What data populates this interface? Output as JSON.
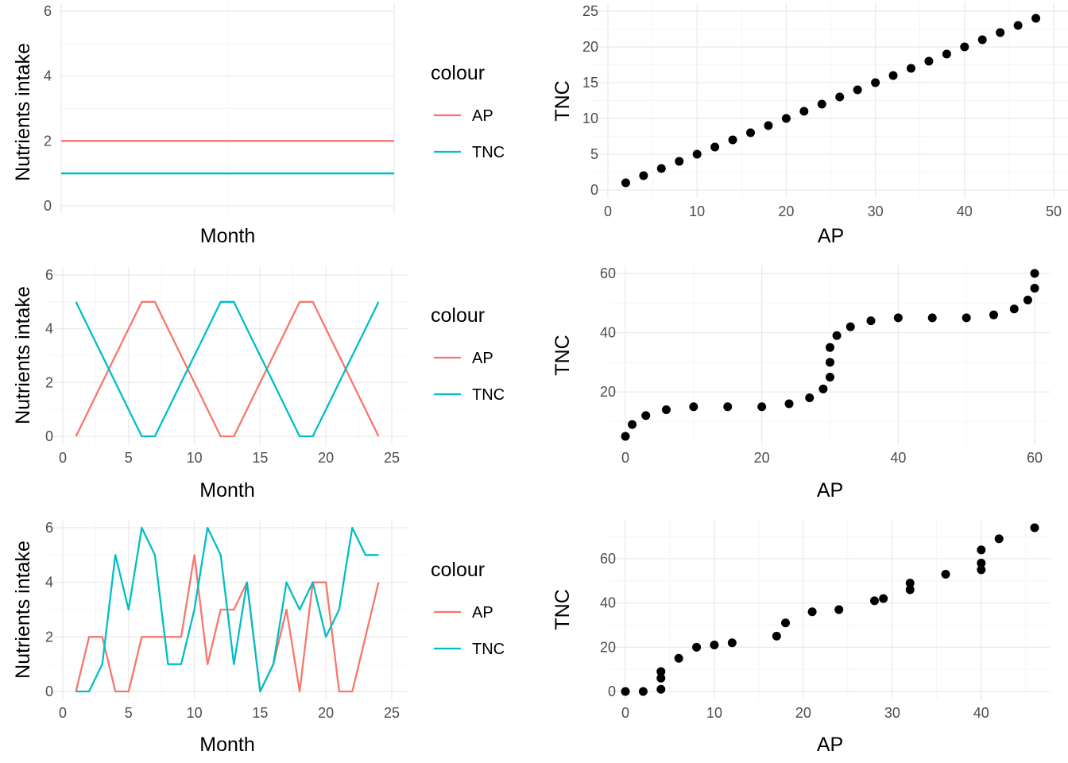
{
  "colors": {
    "AP": "#F8766D",
    "TNC": "#00BFC4",
    "point": "#000000"
  },
  "chart_data": [
    {
      "type": "line",
      "xlabel": "Month",
      "ylabel": "Nutrients intake",
      "xlim": [
        1,
        24
      ],
      "ylim": [
        0,
        6
      ],
      "xticks": [],
      "yticks": [
        0,
        2,
        4,
        6
      ],
      "legend": {
        "title": "colour",
        "entries": [
          "AP",
          "TNC"
        ],
        "placement": "right"
      },
      "x": [
        1,
        2,
        3,
        4,
        5,
        6,
        7,
        8,
        9,
        10,
        11,
        12,
        13,
        14,
        15,
        16,
        17,
        18,
        19,
        20,
        21,
        22,
        23,
        24
      ],
      "series": [
        {
          "name": "AP",
          "values": [
            2,
            2,
            2,
            2,
            2,
            2,
            2,
            2,
            2,
            2,
            2,
            2,
            2,
            2,
            2,
            2,
            2,
            2,
            2,
            2,
            2,
            2,
            2,
            2
          ]
        },
        {
          "name": "TNC",
          "values": [
            1,
            1,
            1,
            1,
            1,
            1,
            1,
            1,
            1,
            1,
            1,
            1,
            1,
            1,
            1,
            1,
            1,
            1,
            1,
            1,
            1,
            1,
            1,
            1
          ]
        }
      ]
    },
    {
      "type": "scatter",
      "xlabel": "AP",
      "ylabel": "TNC",
      "xlim": [
        0,
        50
      ],
      "ylim": [
        0,
        25
      ],
      "xticks": [
        0,
        10,
        20,
        30,
        40,
        50
      ],
      "yticks": [
        0,
        5,
        10,
        15,
        20,
        25
      ],
      "points": [
        [
          2,
          1
        ],
        [
          4,
          2
        ],
        [
          6,
          3
        ],
        [
          8,
          4
        ],
        [
          10,
          5
        ],
        [
          12,
          6
        ],
        [
          14,
          7
        ],
        [
          16,
          8
        ],
        [
          18,
          9
        ],
        [
          20,
          10
        ],
        [
          22,
          11
        ],
        [
          24,
          12
        ],
        [
          26,
          13
        ],
        [
          28,
          14
        ],
        [
          30,
          15
        ],
        [
          32,
          16
        ],
        [
          34,
          17
        ],
        [
          36,
          18
        ],
        [
          38,
          19
        ],
        [
          40,
          20
        ],
        [
          42,
          21
        ],
        [
          44,
          22
        ],
        [
          46,
          23
        ],
        [
          48,
          24
        ]
      ]
    },
    {
      "type": "line",
      "xlabel": "Month",
      "ylabel": "Nutrients intake",
      "xlim": [
        0,
        25
      ],
      "ylim": [
        0,
        6
      ],
      "xticks": [
        0,
        5,
        10,
        15,
        20,
        25
      ],
      "yticks": [
        0,
        2,
        4,
        6
      ],
      "legend": {
        "title": "colour",
        "entries": [
          "AP",
          "TNC"
        ],
        "placement": "right"
      },
      "x": [
        1,
        2,
        3,
        4,
        5,
        6,
        7,
        8,
        9,
        10,
        11,
        12,
        13,
        14,
        15,
        16,
        17,
        18,
        19,
        20,
        21,
        22,
        23,
        24
      ],
      "series": [
        {
          "name": "AP",
          "values": [
            0,
            1,
            2,
            3,
            4,
            5,
            5,
            4,
            3,
            2,
            1,
            0,
            0,
            1,
            2,
            3,
            4,
            5,
            5,
            4,
            3,
            2,
            1,
            0
          ]
        },
        {
          "name": "TNC",
          "values": [
            5,
            4,
            3,
            2,
            1,
            0,
            0,
            1,
            2,
            3,
            4,
            5,
            5,
            4,
            3,
            2,
            1,
            0,
            0,
            1,
            2,
            3,
            4,
            5
          ]
        }
      ]
    },
    {
      "type": "scatter",
      "xlabel": "AP",
      "ylabel": "TNC",
      "xlim": [
        0,
        60
      ],
      "ylim": [
        5,
        60
      ],
      "xticks": [
        0,
        20,
        40,
        60
      ],
      "yticks": [
        20,
        40,
        60
      ],
      "points": [
        [
          0,
          5
        ],
        [
          1,
          9
        ],
        [
          3,
          12
        ],
        [
          6,
          14
        ],
        [
          10,
          15
        ],
        [
          15,
          15
        ],
        [
          20,
          15
        ],
        [
          24,
          16
        ],
        [
          27,
          18
        ],
        [
          29,
          21
        ],
        [
          30,
          25
        ],
        [
          30,
          30
        ],
        [
          30,
          35
        ],
        [
          31,
          39
        ],
        [
          33,
          42
        ],
        [
          36,
          44
        ],
        [
          40,
          45
        ],
        [
          45,
          45
        ],
        [
          50,
          45
        ],
        [
          54,
          46
        ],
        [
          57,
          48
        ],
        [
          59,
          51
        ],
        [
          60,
          55
        ],
        [
          60,
          60
        ]
      ]
    },
    {
      "type": "line",
      "xlabel": "Month",
      "ylabel": "Nutrients intake",
      "xlim": [
        0,
        25
      ],
      "ylim": [
        0,
        6
      ],
      "xticks": [
        0,
        5,
        10,
        15,
        20,
        25
      ],
      "yticks": [
        0,
        2,
        4,
        6
      ],
      "legend": {
        "title": "colour",
        "entries": [
          "AP",
          "TNC"
        ],
        "placement": "right"
      },
      "x": [
        1,
        2,
        3,
        4,
        5,
        6,
        7,
        8,
        9,
        10,
        11,
        12,
        13,
        14,
        15,
        16,
        17,
        18,
        19,
        20,
        21,
        22,
        23,
        24
      ],
      "series": [
        {
          "name": "AP",
          "values": [
            0,
            2,
            2,
            0,
            0,
            2,
            2,
            2,
            2,
            5,
            1,
            3,
            3,
            4,
            0,
            1,
            3,
            0,
            4,
            4,
            0,
            0,
            2,
            4
          ]
        },
        {
          "name": "TNC",
          "values": [
            0,
            0,
            1,
            5,
            3,
            6,
            5,
            1,
            1,
            3,
            6,
            5,
            1,
            4,
            0,
            1,
            4,
            3,
            4,
            2,
            3,
            6,
            5,
            5
          ]
        }
      ]
    },
    {
      "type": "scatter",
      "xlabel": "AP",
      "ylabel": "TNC",
      "xlim": [
        0,
        46
      ],
      "ylim": [
        0,
        74
      ],
      "xticks": [
        0,
        10,
        20,
        30,
        40
      ],
      "yticks": [
        0,
        20,
        40,
        60
      ],
      "points": [
        [
          0,
          0
        ],
        [
          2,
          0
        ],
        [
          4,
          1
        ],
        [
          4,
          6
        ],
        [
          4,
          9
        ],
        [
          6,
          15
        ],
        [
          8,
          20
        ],
        [
          10,
          21
        ],
        [
          12,
          22
        ],
        [
          17,
          25
        ],
        [
          18,
          31
        ],
        [
          21,
          36
        ],
        [
          24,
          37
        ],
        [
          28,
          41
        ],
        [
          29,
          42
        ],
        [
          32,
          46
        ],
        [
          32,
          49
        ],
        [
          36,
          53
        ],
        [
          40,
          55
        ],
        [
          40,
          58
        ],
        [
          40,
          64
        ],
        [
          42,
          69
        ],
        [
          46,
          74
        ]
      ]
    }
  ]
}
